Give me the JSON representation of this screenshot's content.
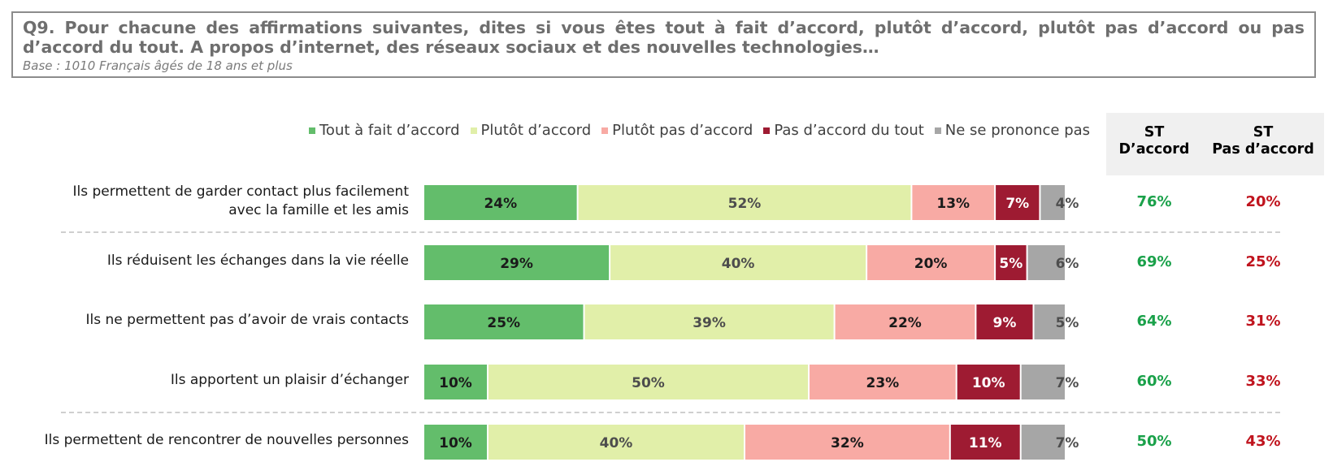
{
  "question": {
    "title": "Q9. Pour chacune des affirmations suivantes, dites si vous êtes tout à fait d’accord, plutôt d’accord, plutôt pas d’accord ou pas d’accord du tout. A propos d’internet, des réseaux sociaux et des nouvelles technologies…",
    "base": "Base : 1010 Français âgés de 18 ans et plus"
  },
  "st_headers": {
    "agree_line1": "ST",
    "agree_line2": "D’accord",
    "disagree_line1": "ST",
    "disagree_line2": "Pas d’accord"
  },
  "colors": {
    "tout_a_fait": "#63bd6b",
    "plutot": "#e1efa9",
    "plutot_pas": "#f8aaa4",
    "pas_du_tout": "#9e1b32",
    "nsp": "#a6a6a6",
    "st_agree_text": "#1aa14a",
    "st_disagree_text": "#c0141e"
  },
  "chart_data": {
    "type": "bar",
    "orientation": "horizontal",
    "stacked": true,
    "legend_position": "top",
    "categories": [
      "Ils permettent de garder contact plus facilement avec la famille et les amis",
      "Ils réduisent les échanges dans la vie réelle",
      "Ils ne permettent pas d’avoir de vrais contacts",
      "Ils apportent un plaisir d’échanger",
      "Ils permettent de rencontrer de nouvelles personnes"
    ],
    "category_lines": [
      [
        "Ils permettent de garder contact plus facilement",
        "avec la famille et les amis"
      ],
      [
        "Ils réduisent les échanges dans la vie réelle"
      ],
      [
        "Ils ne permettent pas d’avoir de vrais contacts"
      ],
      [
        "Ils apportent un plaisir d’échanger"
      ],
      [
        "Ils permettent de rencontrer de nouvelles personnes"
      ]
    ],
    "series": [
      {
        "name": "Tout à fait d’accord",
        "values": [
          24,
          29,
          25,
          10,
          10
        ],
        "labels": [
          "24%",
          "29%",
          "25%",
          "10%",
          "10%"
        ],
        "label_color": "#1a1a1a"
      },
      {
        "name": "Plutôt d’accord",
        "values": [
          52,
          40,
          39,
          50,
          40
        ],
        "labels": [
          "52%",
          "40%",
          "39%",
          "50%",
          "40%"
        ],
        "label_color": "#4d4d4d"
      },
      {
        "name": "Plutôt pas d’accord",
        "values": [
          13,
          20,
          22,
          23,
          32
        ],
        "labels": [
          "13%",
          "20%",
          "22%",
          "23%",
          "32%"
        ],
        "label_color": "#1a1a1a"
      },
      {
        "name": "Pas d’accord du tout",
        "values": [
          7,
          5,
          9,
          10,
          11
        ],
        "labels": [
          "7%",
          "5%",
          "9%",
          "10%",
          "11%"
        ],
        "label_color": "#ffffff"
      },
      {
        "name": "Ne se prononce pas",
        "values": [
          4,
          6,
          5,
          7,
          7
        ],
        "labels": [
          "4%",
          "6%",
          "5%",
          "7%",
          "7%"
        ],
        "label_color": "#4d4d4d"
      }
    ],
    "st_agree": [
      "76%",
      "69%",
      "64%",
      "60%",
      "50%"
    ],
    "st_disagree": [
      "20%",
      "25%",
      "31%",
      "33%",
      "43%"
    ],
    "dividers_after_rows": [
      0,
      3
    ]
  }
}
